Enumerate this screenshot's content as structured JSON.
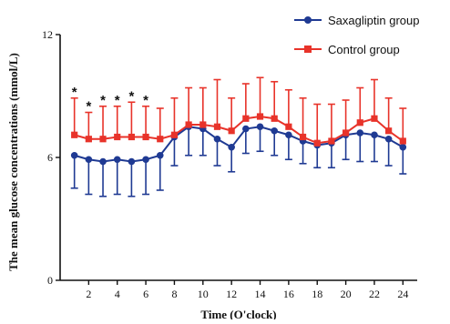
{
  "chart_data": {
    "type": "line",
    "title": "",
    "xlabel": "Time (O'clock)",
    "ylabel": "The mean glucose concentrations (mmol/L)",
    "x": [
      1,
      2,
      3,
      4,
      5,
      6,
      7,
      8,
      9,
      10,
      11,
      12,
      13,
      14,
      15,
      16,
      17,
      18,
      19,
      20,
      21,
      22,
      23,
      24
    ],
    "xticks": [
      2,
      4,
      6,
      8,
      10,
      12,
      14,
      16,
      18,
      20,
      22,
      24
    ],
    "xlim": [
      0,
      25
    ],
    "yticks": [
      0,
      6,
      12
    ],
    "ylim": [
      0,
      12
    ],
    "grid": false,
    "legend_position": "top-right",
    "series": [
      {
        "name": "Saxagliptin group",
        "color": "#1f3a93",
        "marker": "circle",
        "values": [
          6.1,
          5.9,
          5.8,
          5.9,
          5.8,
          5.9,
          6.1,
          7.0,
          7.5,
          7.4,
          6.9,
          6.5,
          7.4,
          7.5,
          7.3,
          7.1,
          6.8,
          6.6,
          6.7,
          7.1,
          7.2,
          7.1,
          6.9,
          6.5
        ],
        "error_lower": [
          1.6,
          1.7,
          1.7,
          1.7,
          1.7,
          1.7,
          1.7,
          1.4,
          1.4,
          1.3,
          1.3,
          1.2,
          1.2,
          1.2,
          1.2,
          1.2,
          1.1,
          1.1,
          1.2,
          1.2,
          1.4,
          1.3,
          1.3,
          1.3
        ]
      },
      {
        "name": "Control group",
        "color": "#e8332a",
        "marker": "square",
        "values": [
          7.1,
          6.9,
          6.9,
          7.0,
          7.0,
          7.0,
          6.9,
          7.1,
          7.6,
          7.6,
          7.5,
          7.3,
          7.9,
          8.0,
          7.9,
          7.5,
          7.0,
          6.7,
          6.8,
          7.2,
          7.7,
          7.9,
          7.3,
          6.8
        ],
        "error_upper": [
          1.8,
          1.3,
          1.6,
          1.5,
          1.7,
          1.5,
          1.5,
          1.8,
          1.8,
          1.8,
          2.3,
          1.6,
          1.7,
          1.9,
          1.8,
          1.8,
          1.9,
          1.9,
          1.8,
          1.6,
          1.7,
          1.9,
          1.6,
          1.6
        ]
      }
    ],
    "annotations": [
      {
        "text": "*",
        "x": 1
      },
      {
        "text": "*",
        "x": 2
      },
      {
        "text": "*",
        "x": 3
      },
      {
        "text": "*",
        "x": 4
      },
      {
        "text": "*",
        "x": 5
      },
      {
        "text": "*",
        "x": 6
      }
    ]
  }
}
